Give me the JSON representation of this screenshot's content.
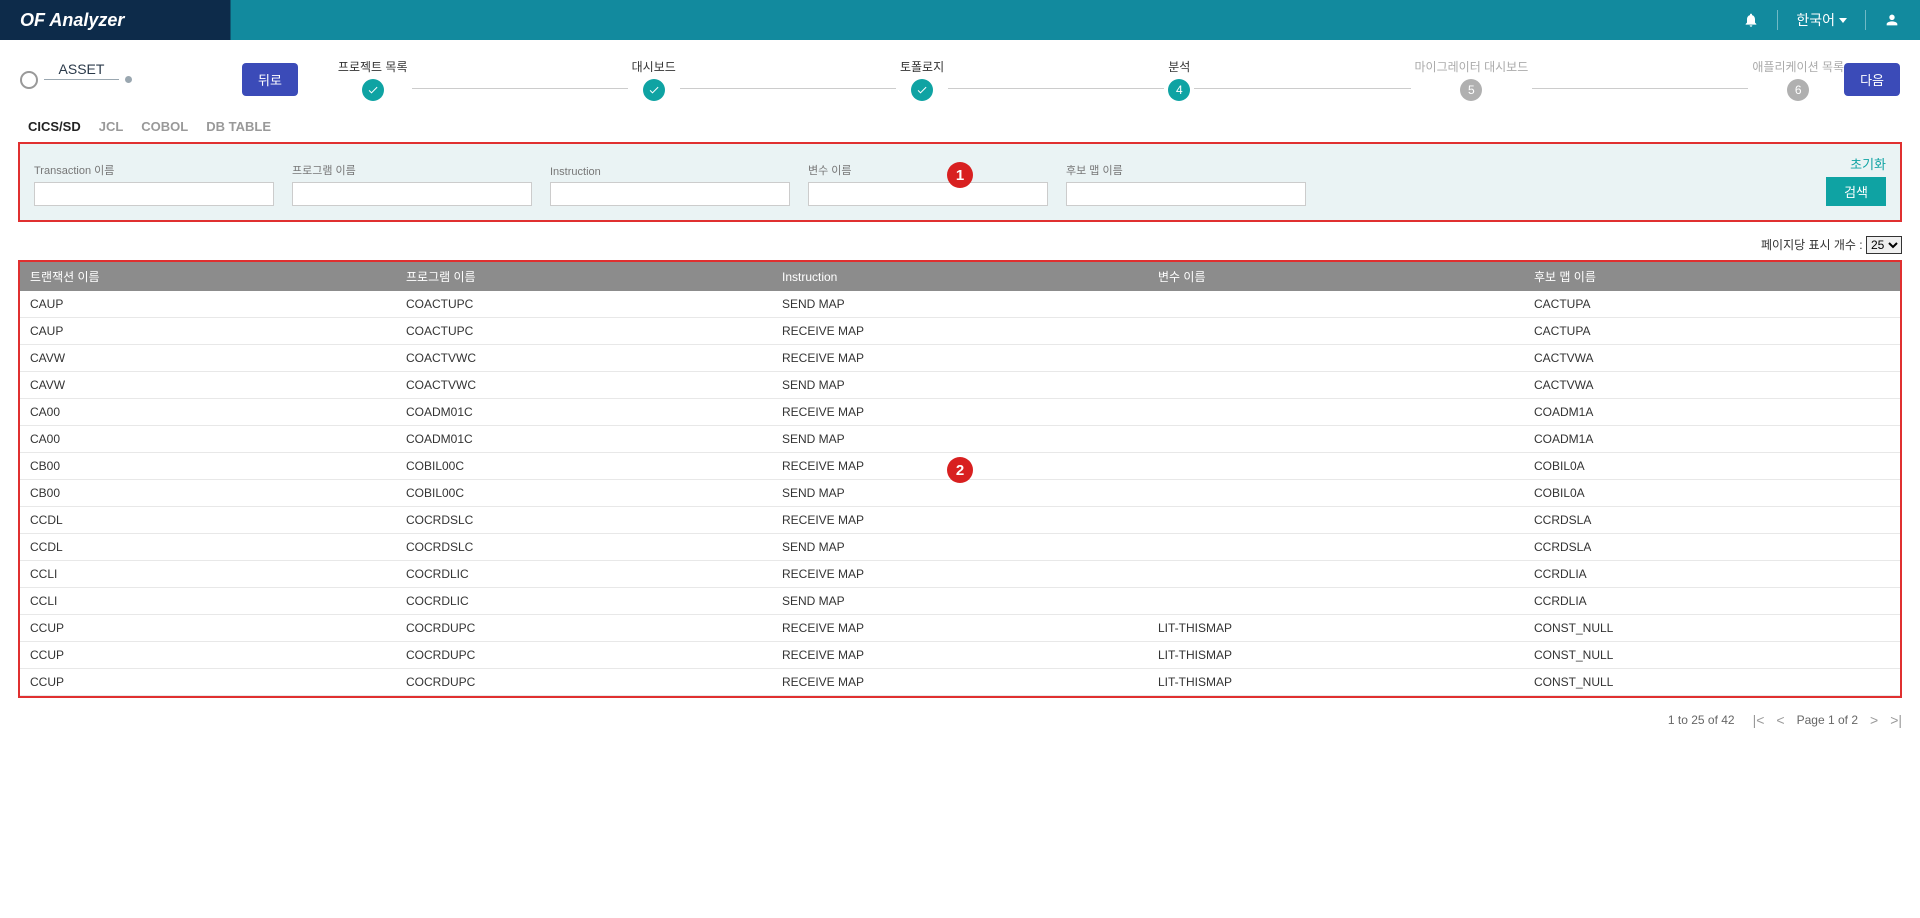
{
  "header": {
    "logo": "OF Analyzer",
    "language": "한국어"
  },
  "toolbar": {
    "asset": "ASSET",
    "back": "뒤로",
    "next": "다음"
  },
  "steps": [
    {
      "label": "프로젝트 목록",
      "state": "done"
    },
    {
      "label": "대시보드",
      "state": "done"
    },
    {
      "label": "토폴로지",
      "state": "done"
    },
    {
      "label": "분석",
      "state": "current",
      "num": "4"
    },
    {
      "label": "마이그레이터 대시보드",
      "state": "pending",
      "num": "5"
    },
    {
      "label": "애플리케이션 목록",
      "state": "pending",
      "num": "6"
    }
  ],
  "tabs": [
    {
      "label": "CICS/SD",
      "active": true
    },
    {
      "label": "JCL",
      "active": false
    },
    {
      "label": "COBOL",
      "active": false
    },
    {
      "label": "DB TABLE",
      "active": false
    }
  ],
  "filters": {
    "transaction": {
      "label": "Transaction 이름"
    },
    "program": {
      "label": "프로그램 이름"
    },
    "instruction": {
      "label": "Instruction"
    },
    "variable": {
      "label": "변수 이름"
    },
    "candidate": {
      "label": "후보 맵 이름"
    },
    "reset": "초기화",
    "search": "검색"
  },
  "pageSize": {
    "label": "페이지당 표시 개수 :",
    "value": "25"
  },
  "columns": {
    "transaction": "트랜잭션 이름",
    "program": "프로그램 이름",
    "instruction": "Instruction",
    "variable": "변수 이름",
    "candidate": "후보 맵 이름"
  },
  "rows": [
    {
      "t": "CAUP",
      "p": "COACTUPC",
      "i": "SEND MAP",
      "v": "",
      "c": "CACTUPA"
    },
    {
      "t": "CAUP",
      "p": "COACTUPC",
      "i": "RECEIVE MAP",
      "v": "",
      "c": "CACTUPA"
    },
    {
      "t": "CAVW",
      "p": "COACTVWC",
      "i": "RECEIVE MAP",
      "v": "",
      "c": "CACTVWA"
    },
    {
      "t": "CAVW",
      "p": "COACTVWC",
      "i": "SEND MAP",
      "v": "",
      "c": "CACTVWA"
    },
    {
      "t": "CA00",
      "p": "COADM01C",
      "i": "RECEIVE MAP",
      "v": "",
      "c": "COADM1A"
    },
    {
      "t": "CA00",
      "p": "COADM01C",
      "i": "SEND MAP",
      "v": "",
      "c": "COADM1A"
    },
    {
      "t": "CB00",
      "p": "COBIL00C",
      "i": "RECEIVE MAP",
      "v": "",
      "c": "COBIL0A"
    },
    {
      "t": "CB00",
      "p": "COBIL00C",
      "i": "SEND MAP",
      "v": "",
      "c": "COBIL0A"
    },
    {
      "t": "CCDL",
      "p": "COCRDSLC",
      "i": "RECEIVE MAP",
      "v": "",
      "c": "CCRDSLA"
    },
    {
      "t": "CCDL",
      "p": "COCRDSLC",
      "i": "SEND MAP",
      "v": "",
      "c": "CCRDSLA"
    },
    {
      "t": "CCLI",
      "p": "COCRDLIC",
      "i": "RECEIVE MAP",
      "v": "",
      "c": "CCRDLIA"
    },
    {
      "t": "CCLI",
      "p": "COCRDLIC",
      "i": "SEND MAP",
      "v": "",
      "c": "CCRDLIA"
    },
    {
      "t": "CCUP",
      "p": "COCRDUPC",
      "i": "RECEIVE MAP",
      "v": "LIT-THISMAP",
      "c": "CONST_NULL"
    },
    {
      "t": "CCUP",
      "p": "COCRDUPC",
      "i": "RECEIVE MAP",
      "v": "LIT-THISMAP",
      "c": "CONST_NULL"
    },
    {
      "t": "CCUP",
      "p": "COCRDUPC",
      "i": "RECEIVE MAP",
      "v": "LIT-THISMAP",
      "c": "CONST_NULL"
    }
  ],
  "pagination": {
    "range": "1 to 25 of 42",
    "page": "Page 1 of 2"
  },
  "annotations": {
    "b1": "1",
    "b2": "2"
  }
}
